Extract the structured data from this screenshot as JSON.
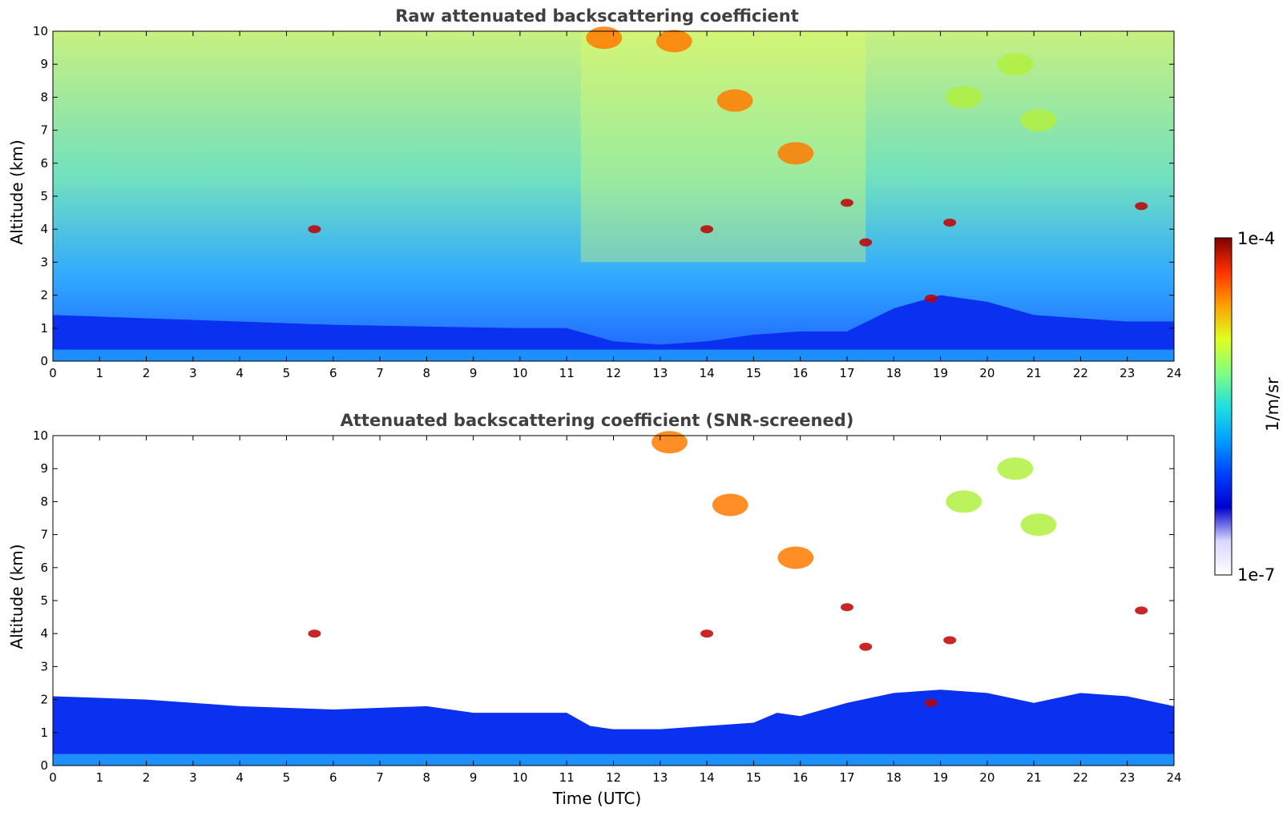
{
  "chart_data": [
    {
      "type": "heatmap",
      "title": "Raw attenuated backscattering coefficient",
      "xlabel": "",
      "ylabel": "Altitude (km)",
      "xlim": [
        0,
        24
      ],
      "ylim": [
        0,
        10
      ],
      "x_ticks": [
        "0",
        "1",
        "2",
        "3",
        "4",
        "5",
        "6",
        "7",
        "8",
        "9",
        "10",
        "11",
        "12",
        "13",
        "14",
        "15",
        "16",
        "17",
        "18",
        "19",
        "20",
        "21",
        "22",
        "23",
        "24"
      ],
      "y_ticks": [
        "0",
        "1",
        "2",
        "3",
        "4",
        "5",
        "6",
        "7",
        "8",
        "9",
        "10"
      ],
      "boundary_layer_top_km": [
        [
          0,
          1.4
        ],
        [
          2,
          1.3
        ],
        [
          4,
          1.2
        ],
        [
          6,
          1.1
        ],
        [
          8,
          1.05
        ],
        [
          10,
          1.0
        ],
        [
          11,
          1.0
        ],
        [
          12,
          0.6
        ],
        [
          13,
          0.5
        ],
        [
          14,
          0.6
        ],
        [
          15,
          0.8
        ],
        [
          16,
          0.9
        ],
        [
          17,
          0.9
        ],
        [
          18,
          1.6
        ],
        [
          19,
          2.0
        ],
        [
          20,
          1.8
        ],
        [
          21,
          1.4
        ],
        [
          22,
          1.3
        ],
        [
          23,
          1.2
        ],
        [
          24,
          1.2
        ]
      ],
      "clouds": [
        {
          "t": 11.8,
          "z": 9.8,
          "level": "high"
        },
        {
          "t": 13.3,
          "z": 9.7,
          "level": "high"
        },
        {
          "t": 14.6,
          "z": 7.9,
          "level": "high"
        },
        {
          "t": 15.9,
          "z": 6.3,
          "level": "high"
        },
        {
          "t": 19.5,
          "z": 8.0,
          "level": "mid"
        },
        {
          "t": 20.6,
          "z": 9.0,
          "level": "mid"
        },
        {
          "t": 21.1,
          "z": 7.3,
          "level": "mid"
        },
        {
          "t": 17.0,
          "z": 4.8,
          "level": "max"
        },
        {
          "t": 14.0,
          "z": 4.0,
          "level": "max"
        },
        {
          "t": 17.4,
          "z": 3.6,
          "level": "max"
        },
        {
          "t": 19.2,
          "z": 4.2,
          "level": "max"
        },
        {
          "t": 18.8,
          "z": 1.9,
          "level": "max"
        },
        {
          "t": 23.3,
          "z": 4.7,
          "level": "max"
        },
        {
          "t": 5.6,
          "z": 4.0,
          "level": "max"
        }
      ]
    },
    {
      "type": "heatmap",
      "title": "Attenuated backscattering coefficient (SNR-screened)",
      "xlabel": "Time (UTC)",
      "ylabel": "Altitude (km)",
      "xlim": [
        0,
        24
      ],
      "ylim": [
        0,
        10
      ],
      "x_ticks": [
        "0",
        "1",
        "2",
        "3",
        "4",
        "5",
        "6",
        "7",
        "8",
        "9",
        "10",
        "11",
        "12",
        "13",
        "14",
        "15",
        "16",
        "17",
        "18",
        "19",
        "20",
        "21",
        "22",
        "23",
        "24"
      ],
      "y_ticks": [
        "0",
        "1",
        "2",
        "3",
        "4",
        "5",
        "6",
        "7",
        "8",
        "9",
        "10"
      ],
      "boundary_layer_top_km": [
        [
          0,
          2.1
        ],
        [
          2,
          2.0
        ],
        [
          3,
          1.9
        ],
        [
          4,
          1.8
        ],
        [
          6,
          1.7
        ],
        [
          8,
          1.8
        ],
        [
          9,
          1.6
        ],
        [
          10,
          1.6
        ],
        [
          11,
          1.6
        ],
        [
          11.5,
          1.2
        ],
        [
          12,
          1.1
        ],
        [
          13,
          1.1
        ],
        [
          14,
          1.2
        ],
        [
          15,
          1.3
        ],
        [
          15.5,
          1.6
        ],
        [
          16,
          1.5
        ],
        [
          17,
          1.9
        ],
        [
          18,
          2.2
        ],
        [
          19,
          2.3
        ],
        [
          20,
          2.2
        ],
        [
          21,
          1.9
        ],
        [
          22,
          2.2
        ],
        [
          23,
          2.1
        ],
        [
          24,
          1.8
        ]
      ],
      "clouds": [
        {
          "t": 13.2,
          "z": 9.8,
          "level": "high"
        },
        {
          "t": 14.5,
          "z": 7.9,
          "level": "high"
        },
        {
          "t": 15.9,
          "z": 6.3,
          "level": "high"
        },
        {
          "t": 19.5,
          "z": 8.0,
          "level": "mid"
        },
        {
          "t": 20.6,
          "z": 9.0,
          "level": "mid"
        },
        {
          "t": 21.1,
          "z": 7.3,
          "level": "mid"
        },
        {
          "t": 17.0,
          "z": 4.8,
          "level": "max"
        },
        {
          "t": 14.0,
          "z": 4.0,
          "level": "max"
        },
        {
          "t": 17.4,
          "z": 3.6,
          "level": "max"
        },
        {
          "t": 19.2,
          "z": 3.8,
          "level": "max"
        },
        {
          "t": 18.8,
          "z": 1.9,
          "level": "max"
        },
        {
          "t": 23.3,
          "z": 4.7,
          "level": "max"
        },
        {
          "t": 5.6,
          "z": 4.0,
          "level": "max"
        }
      ]
    }
  ],
  "colorbar": {
    "max_label": "1e-4",
    "min_label": "1e-7",
    "unit_label": "1/m/sr",
    "colormap": "jet",
    "stops": [
      "#ffffff",
      "#d8d8ff",
      "#0000d0",
      "#0040ff",
      "#00a0ff",
      "#20e0e0",
      "#80ff80",
      "#e0ff20",
      "#ffa000",
      "#ff3000",
      "#800000"
    ]
  }
}
